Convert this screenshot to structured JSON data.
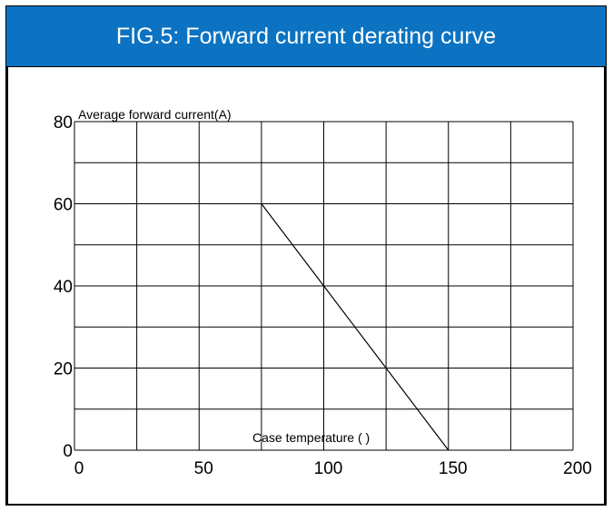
{
  "header": {
    "title": "FIG.5: Forward current derating curve"
  },
  "colors": {
    "header_bg": "#0b73c2",
    "header_text": "#ffffff",
    "grid": "#000000",
    "curve": "#000000"
  },
  "chart_data": {
    "type": "line",
    "title": "FIG.5: Forward current derating curve",
    "xlabel": "Case temperature (   )",
    "ylabel": "Average forward current(A)",
    "xlim": [
      0,
      200
    ],
    "ylim": [
      0,
      80
    ],
    "xticks": [
      "0",
      "50",
      "100",
      "150",
      "200"
    ],
    "yticks": [
      "0",
      "20",
      "40",
      "60",
      "80"
    ],
    "grid": true,
    "series": [
      {
        "x": [
          75,
          150
        ],
        "y": [
          60,
          0
        ]
      }
    ]
  }
}
